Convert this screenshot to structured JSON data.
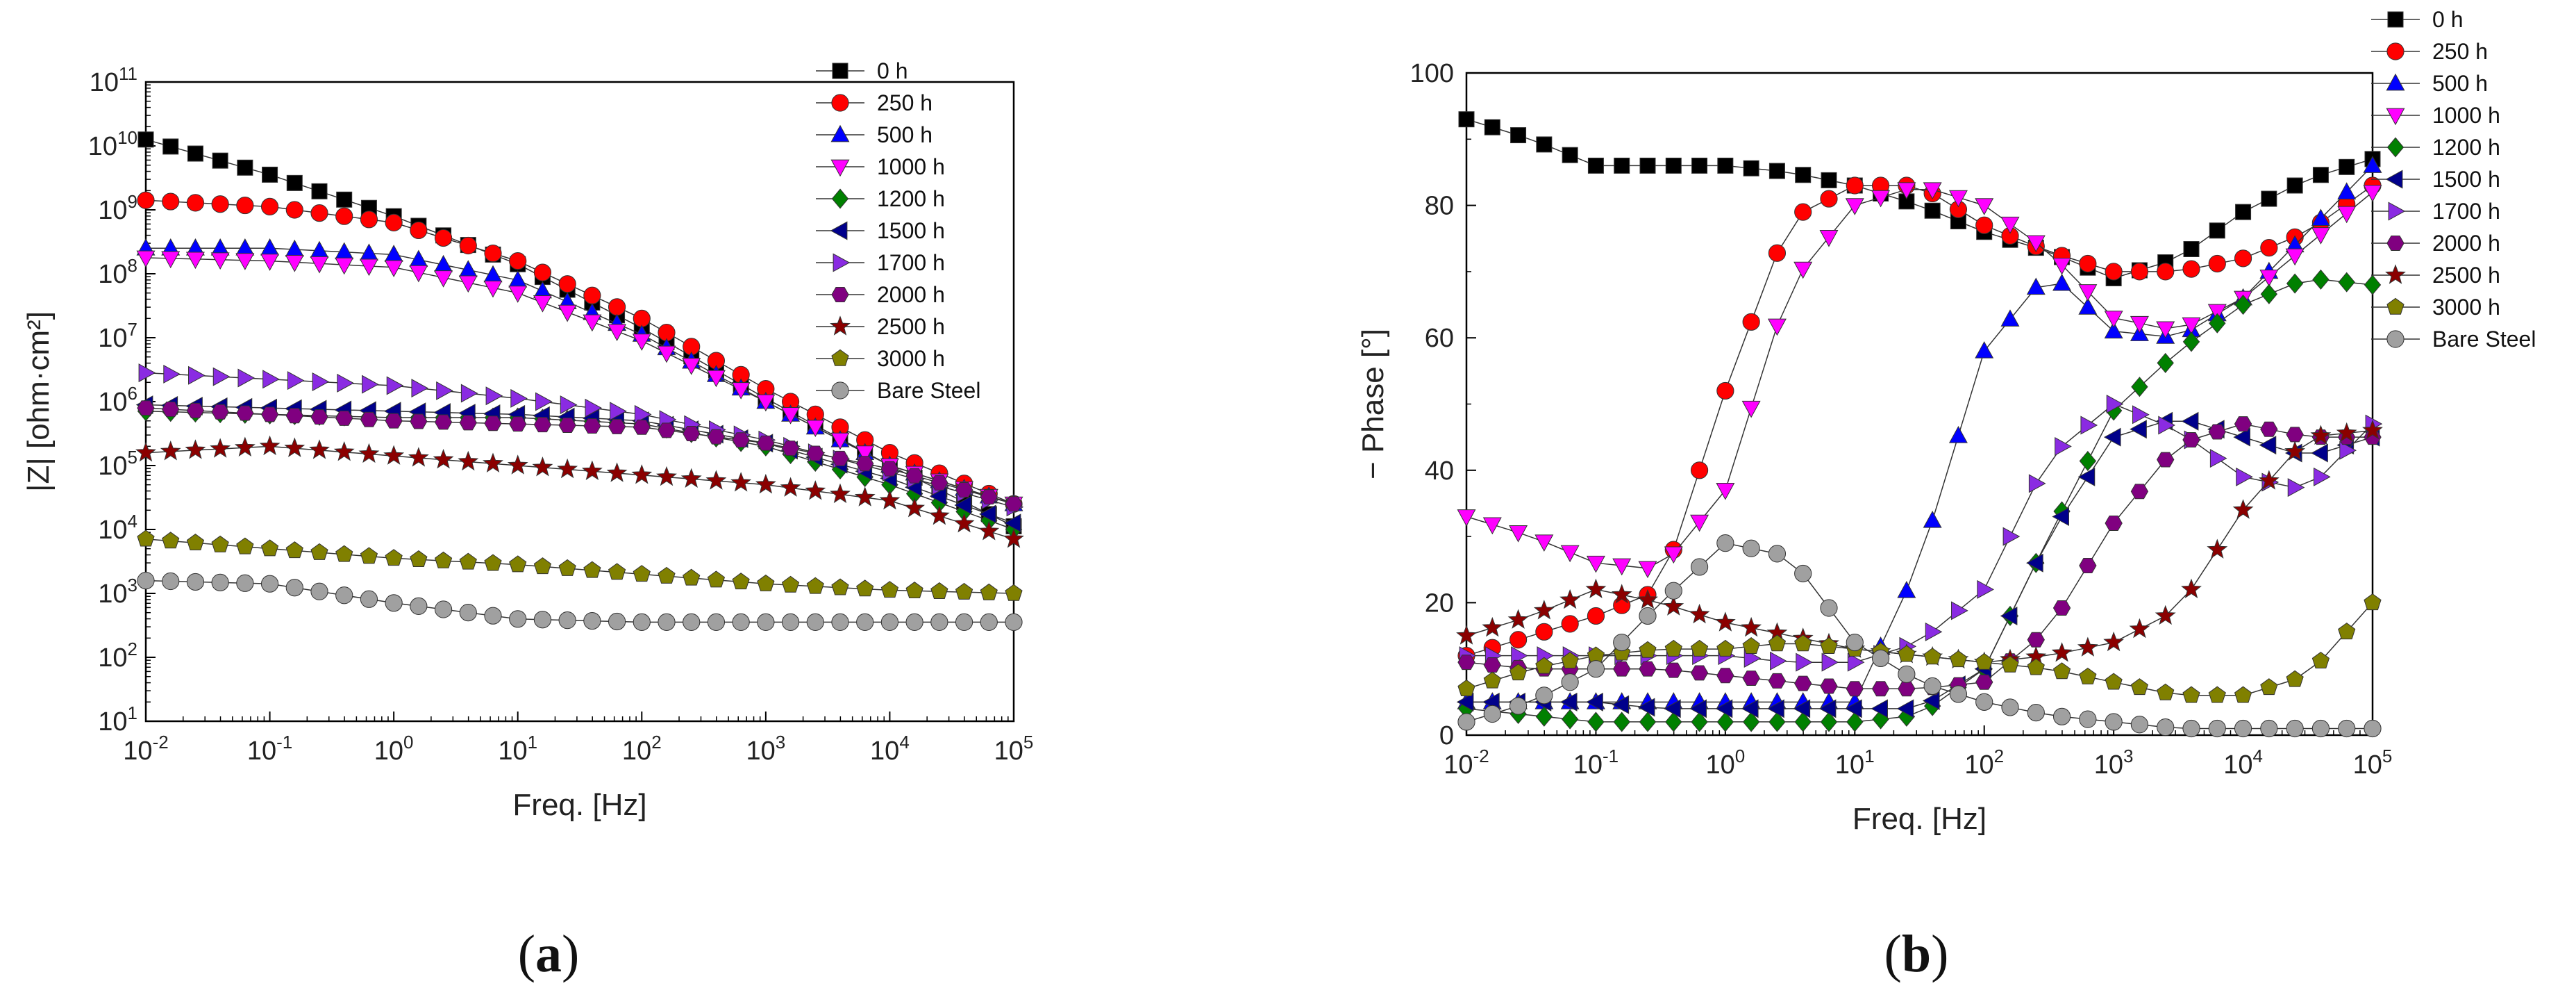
{
  "colors": {
    "0 h": "#000000",
    "250 h": "#ff0000",
    "500 h": "#0000ff",
    "1000 h": "#ff00ff",
    "1200 h": "#008000",
    "1500 h": "#00008b",
    "1700 h": "#8a2be2",
    "2000 h": "#800080",
    "2500 h": "#8b0000",
    "3000 h": "#808000",
    "Bare Steel": "#a0a0a0"
  },
  "markers": {
    "0 h": "square",
    "250 h": "circle",
    "500 h": "triangle-up",
    "1000 h": "triangle-down",
    "1200 h": "diamond",
    "1500 h": "triangle-left",
    "1700 h": "triangle-right",
    "2000 h": "hexagon",
    "2500 h": "star",
    "3000 h": "pentagon",
    "Bare Steel": "sphere"
  },
  "chart_data": [
    {
      "id": "a",
      "type": "scatter",
      "panel_label": "(a)",
      "title": "",
      "xlabel": "Freq. [Hz]",
      "ylabel": "|Z| [ohm·cm²]",
      "xscale": "log",
      "yscale": "log",
      "xlim_exp": [
        -2,
        5
      ],
      "ylim_exp": [
        1,
        11
      ],
      "x_tick_labels": [
        {
          "base": "10",
          "exp": "-2"
        },
        {
          "base": "10",
          "exp": "-1"
        },
        {
          "base": "10",
          "exp": "0"
        },
        {
          "base": "10",
          "exp": "1"
        },
        {
          "base": "10",
          "exp": "2"
        },
        {
          "base": "10",
          "exp": "3"
        },
        {
          "base": "10",
          "exp": "4"
        },
        {
          "base": "10",
          "exp": "5"
        }
      ],
      "y_tick_labels": [
        {
          "base": "10",
          "exp": "1"
        },
        {
          "base": "10",
          "exp": "2"
        },
        {
          "base": "10",
          "exp": "3"
        },
        {
          "base": "10",
          "exp": "4"
        },
        {
          "base": "10",
          "exp": "5"
        },
        {
          "base": "10",
          "exp": "6"
        },
        {
          "base": "10",
          "exp": "7"
        },
        {
          "base": "10",
          "exp": "8"
        },
        {
          "base": "10",
          "exp": "9"
        },
        {
          "base": "10",
          "exp": "10"
        },
        {
          "base": "10",
          "exp": "11"
        }
      ],
      "legend": {
        "placement": "top-right",
        "entries": [
          "0 h",
          "250 h",
          "500 h",
          "1000 h",
          "1200 h",
          "1500 h",
          "1700 h",
          "2000 h",
          "2500 h",
          "3000 h",
          "Bare Steel"
        ]
      },
      "x_log_knots": [
        -2,
        -1,
        0,
        1,
        2,
        3,
        4,
        5
      ],
      "series": [
        {
          "name": "0 h",
          "y_log_knots": [
            10.1,
            9.55,
            8.9,
            8.15,
            7.15,
            6.05,
            5.0,
            4.05
          ],
          "x_log_start": -2,
          "x_log_end": 5
        },
        {
          "name": "250 h",
          "y_log_knots": [
            9.15,
            9.05,
            8.8,
            8.2,
            7.3,
            6.2,
            5.2,
            4.4
          ],
          "x_log_start": -2,
          "x_log_end": 5
        },
        {
          "name": "500 h",
          "y_log_knots": [
            8.4,
            8.4,
            8.3,
            7.9,
            7.05,
            6.0,
            5.0,
            4.4
          ],
          "x_log_start": -2,
          "x_log_end": 5
        },
        {
          "name": "1000 h",
          "y_log_knots": [
            8.25,
            8.2,
            8.1,
            7.7,
            6.95,
            6.0,
            5.0,
            4.4
          ],
          "x_log_start": -2,
          "x_log_end": 5
        },
        {
          "name": "1200 h",
          "y_log_knots": [
            5.85,
            5.8,
            5.75,
            5.75,
            5.65,
            5.3,
            4.7,
            4.0
          ],
          "x_log_start": -2,
          "x_log_end": 5
        },
        {
          "name": "1500 h",
          "y_log_knots": [
            5.95,
            5.9,
            5.85,
            5.8,
            5.7,
            5.35,
            4.8,
            4.1
          ],
          "x_log_start": -2,
          "x_log_end": 5
        },
        {
          "name": "1700 h",
          "y_log_knots": [
            6.45,
            6.35,
            6.25,
            6.05,
            5.8,
            5.4,
            4.9,
            4.35
          ],
          "x_log_start": -2,
          "x_log_end": 5
        },
        {
          "name": "2000 h",
          "y_log_knots": [
            5.9,
            5.8,
            5.7,
            5.65,
            5.6,
            5.35,
            4.95,
            4.4
          ],
          "x_log_start": -2,
          "x_log_end": 5
        },
        {
          "name": "2500 h",
          "y_log_knots": [
            5.2,
            5.3,
            5.15,
            5.0,
            4.85,
            4.7,
            4.45,
            3.85
          ],
          "x_log_start": -2,
          "x_log_end": 5
        },
        {
          "name": "3000 h",
          "y_log_knots": [
            3.85,
            3.7,
            3.55,
            3.45,
            3.3,
            3.15,
            3.05,
            3.0
          ],
          "x_log_start": -2,
          "x_log_end": 5
        },
        {
          "name": "Bare Steel",
          "y_log_knots": [
            3.2,
            3.15,
            2.85,
            2.6,
            2.55,
            2.55,
            2.55,
            2.55
          ],
          "x_log_start": -2,
          "x_log_end": 5
        }
      ]
    },
    {
      "id": "b",
      "type": "scatter",
      "panel_label": "(b)",
      "title": "",
      "xlabel": "Freq. [Hz]",
      "ylabel": "− Phase [°]",
      "xscale": "log",
      "yscale": "linear",
      "xlim_exp": [
        -2,
        5
      ],
      "ylim": [
        0,
        100
      ],
      "x_tick_labels": [
        {
          "base": "10",
          "exp": "-2"
        },
        {
          "base": "10",
          "exp": "-1"
        },
        {
          "base": "10",
          "exp": "0"
        },
        {
          "base": "10",
          "exp": "1"
        },
        {
          "base": "10",
          "exp": "2"
        },
        {
          "base": "10",
          "exp": "3"
        },
        {
          "base": "10",
          "exp": "4"
        },
        {
          "base": "10",
          "exp": "5"
        }
      ],
      "y_tick_labels": [
        "0",
        "20",
        "40",
        "60",
        "80",
        "100"
      ],
      "y_ticks": [
        0,
        20,
        40,
        60,
        80,
        100
      ],
      "legend": {
        "placement": "top-right",
        "entries": [
          "0 h",
          "250 h",
          "500 h",
          "1000 h",
          "1200 h",
          "1500 h",
          "1700 h",
          "2000 h",
          "2500 h",
          "3000 h",
          "Bare Steel"
        ]
      },
      "x_log_knots": [
        -2,
        -1.5,
        -1,
        -0.5,
        0,
        0.5,
        1,
        1.5,
        2,
        2.5,
        3,
        3.5,
        4,
        4.5,
        5
      ],
      "series": [
        {
          "name": "0 h",
          "values": [
            93,
            90,
            86,
            86,
            86,
            85,
            83,
            80,
            76,
            73,
            69,
            72,
            79,
            84,
            87
          ]
        },
        {
          "name": "250 h",
          "values": [
            12,
            15,
            18,
            22,
            52,
            78,
            83,
            83,
            77,
            73,
            70,
            70,
            72,
            76,
            83
          ]
        },
        {
          "name": "500 h",
          "values": [
            5,
            5,
            5,
            5,
            5,
            5,
            5,
            26,
            58,
            70,
            61,
            60,
            66,
            76,
            86
          ]
        },
        {
          "name": "1000 h",
          "values": [
            33,
            30,
            26,
            25,
            37,
            68,
            80,
            83,
            80,
            73,
            63,
            61,
            66,
            74,
            82
          ]
        },
        {
          "name": "1200 h",
          "values": [
            4,
            3,
            2,
            2,
            2,
            2,
            2,
            3,
            10,
            30,
            49,
            58,
            65,
            69,
            68
          ]
        },
        {
          "name": "1500 h",
          "values": [
            5,
            5,
            5,
            4,
            4,
            4,
            4,
            4,
            10,
            30,
            45,
            48,
            45,
            42,
            45
          ]
        },
        {
          "name": "1700 h",
          "values": [
            12,
            12,
            12,
            12,
            12,
            11,
            11,
            14,
            22,
            42,
            50,
            46,
            39,
            37,
            47
          ]
        },
        {
          "name": "2000 h",
          "values": [
            11,
            10,
            10,
            10,
            9,
            8,
            7,
            7,
            8,
            16,
            32,
            44,
            47,
            45,
            45
          ]
        },
        {
          "name": "2500 h",
          "values": [
            15,
            18,
            22,
            20,
            17,
            15,
            13,
            12,
            11,
            12,
            14,
            19,
            34,
            45,
            46
          ]
        },
        {
          "name": "3000 h",
          "values": [
            7,
            10,
            12,
            13,
            13,
            14,
            13,
            12,
            11,
            10,
            8,
            6,
            6,
            9,
            20
          ]
        },
        {
          "name": "Bare Steel",
          "values": [
            2,
            5,
            10,
            20,
            29,
            27,
            14,
            8,
            5,
            3,
            2,
            1,
            1,
            1,
            1
          ]
        }
      ]
    }
  ]
}
